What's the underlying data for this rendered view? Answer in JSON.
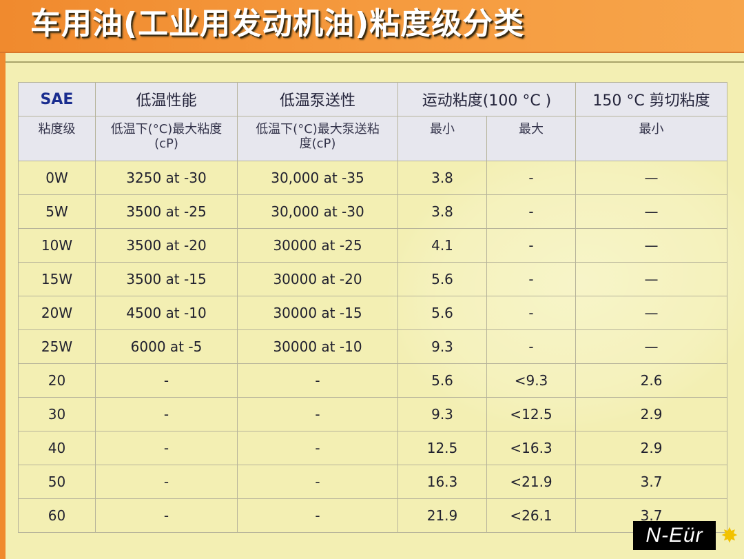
{
  "title": "车用油(工业用发动机油)粘度级分类",
  "table": {
    "header1": {
      "sae": "SAE",
      "low_temp": "低温性能",
      "low_temp_pump": "低温泵送性",
      "kinematic": "运动粘度(100 °C )",
      "shear": "150 °C 剪切粘度"
    },
    "header2": {
      "grade": "粘度级",
      "low_temp_visc": "低温下(°C)最大粘度(cP)",
      "pump_visc": "低温下(°C)最大泵送粘度(cP)",
      "min": "最小",
      "max": "最大",
      "shear_min": "最小"
    },
    "rows": [
      {
        "grade": "0W",
        "low": "3250 at -30",
        "pump": "30,000 at -35",
        "min": "3.8",
        "max": "-",
        "shear": "—"
      },
      {
        "grade": "5W",
        "low": "3500 at -25",
        "pump": "30,000 at -30",
        "min": "3.8",
        "max": "-",
        "shear": "—"
      },
      {
        "grade": "10W",
        "low": "3500 at -20",
        "pump": "30000 at -25",
        "min": "4.1",
        "max": "-",
        "shear": "—"
      },
      {
        "grade": "15W",
        "low": "3500 at -15",
        "pump": "30000 at -20",
        "min": "5.6",
        "max": "-",
        "shear": "—"
      },
      {
        "grade": "20W",
        "low": "4500 at -10",
        "pump": "30000 at -15",
        "min": "5.6",
        "max": "-",
        "shear": "—"
      },
      {
        "grade": "25W",
        "low": "6000 at -5",
        "pump": "30000 at -10",
        "min": "9.3",
        "max": "-",
        "shear": "—"
      },
      {
        "grade": "20",
        "low": "-",
        "pump": "-",
        "min": "5.6",
        "max": "<9.3",
        "shear": "2.6"
      },
      {
        "grade": "30",
        "low": "-",
        "pump": "-",
        "min": "9.3",
        "max": "<12.5",
        "shear": "2.9"
      },
      {
        "grade": "40",
        "low": "-",
        "pump": "-",
        "min": "12.5",
        "max": "<16.3",
        "shear": "2.9"
      },
      {
        "grade": "50",
        "low": "-",
        "pump": "-",
        "min": "16.3",
        "max": "<21.9",
        "shear": "3.7"
      },
      {
        "grade": "60",
        "low": "-",
        "pump": "-",
        "min": "21.9",
        "max": "<26.1",
        "shear": "3.7"
      }
    ]
  },
  "logo": {
    "text": "N-Eür",
    "star": "✸"
  },
  "colors": {
    "title_bar": "#f08a2e",
    "background": "#f3efb3",
    "header_bg": "#e7e7ee",
    "sae_blue": "#1a2d8f"
  }
}
